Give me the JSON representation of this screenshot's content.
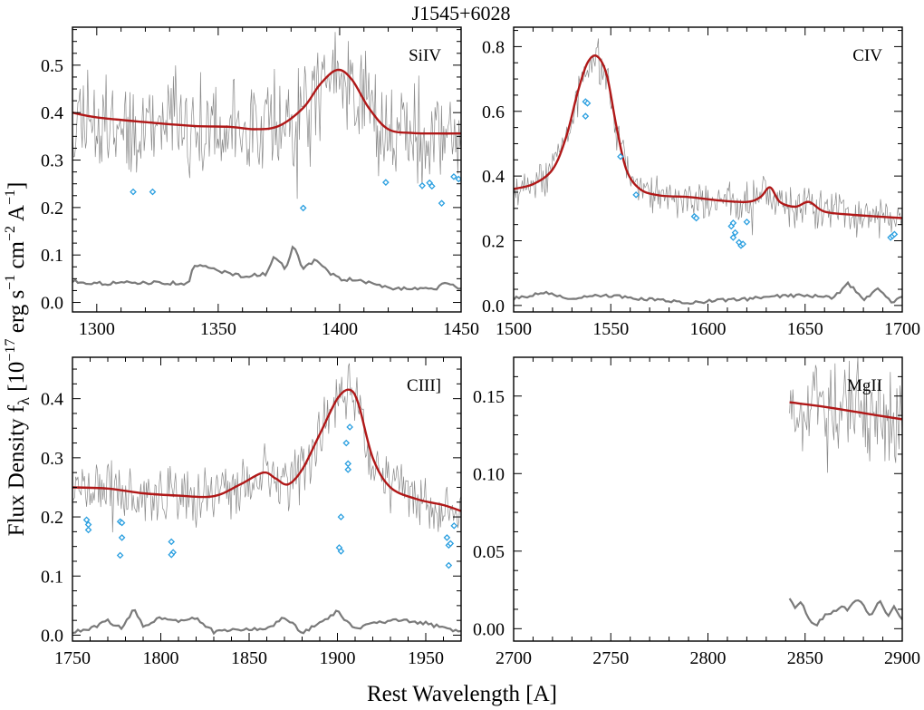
{
  "figure": {
    "title": "J1545+6028",
    "xlabel": "Rest Wavelength [A]",
    "ylabel_main": "Flux Density f",
    "ylabel_sub": "λ",
    "ylabel_units_prefix": " [10",
    "ylabel_exp1": "−17",
    "ylabel_mid1": " erg s",
    "ylabel_exp2": "−1",
    "ylabel_mid2": " cm",
    "ylabel_exp3": "−2",
    "ylabel_mid3": " A",
    "ylabel_exp4": "−1",
    "ylabel_end": "]"
  },
  "colors": {
    "model": "#b01818",
    "spectrum": "#8a8a8a",
    "error": "#7a7a7a",
    "absorption": "#2a9fe0",
    "axes": "#000000"
  },
  "chart_data": [
    {
      "type": "line",
      "panel": "SiIV",
      "label": "SiIV",
      "xlim": [
        1290,
        1450
      ],
      "ylim": [
        -0.02,
        0.58
      ],
      "xticks": [
        1300,
        1350,
        1400,
        1450
      ],
      "yticks": [
        0.0,
        0.1,
        0.2,
        0.3,
        0.4,
        0.5
      ],
      "ytick_labels": [
        "0.0",
        "0.1",
        "0.2",
        "0.3",
        "0.4",
        "0.5"
      ],
      "model": {
        "x": [
          1290,
          1300,
          1320,
          1340,
          1355,
          1365,
          1375,
          1385,
          1392,
          1399,
          1405,
          1412,
          1420,
          1430,
          1440,
          1450
        ],
        "y": [
          0.4,
          0.39,
          0.38,
          0.372,
          0.37,
          0.365,
          0.372,
          0.41,
          0.46,
          0.49,
          0.47,
          0.41,
          0.365,
          0.357,
          0.356,
          0.356
        ]
      },
      "spectrum": {
        "continuum": [
          1290,
          1450,
          0.4,
          0.36
        ],
        "noise": 0.09,
        "seed": 11
      },
      "error": {
        "x": [
          1290,
          1300,
          1320,
          1338,
          1340,
          1360,
          1370,
          1373,
          1378,
          1381,
          1385,
          1390,
          1395,
          1400,
          1410,
          1420,
          1430,
          1440,
          1442,
          1450
        ],
        "y": [
          0.045,
          0.04,
          0.042,
          0.04,
          0.08,
          0.055,
          0.06,
          0.1,
          0.07,
          0.12,
          0.07,
          0.09,
          0.065,
          0.05,
          0.045,
          0.03,
          0.03,
          0.03,
          0.04,
          0.03
        ]
      },
      "absorption": {
        "x": [
          1315,
          1323,
          1385,
          1419,
          1434,
          1437,
          1438,
          1442,
          1447,
          1449
        ],
        "y": [
          0.233,
          0.233,
          0.199,
          0.253,
          0.246,
          0.252,
          0.245,
          0.209,
          0.265,
          0.26
        ]
      }
    },
    {
      "type": "line",
      "panel": "CIV",
      "label": "CIV",
      "xlim": [
        1500,
        1700
      ],
      "ylim": [
        -0.02,
        0.86
      ],
      "xticks": [
        1500,
        1550,
        1600,
        1650,
        1700
      ],
      "yticks": [
        0.0,
        0.2,
        0.4,
        0.6,
        0.8
      ],
      "ytick_labels": [
        "0.0",
        "0.2",
        "0.4",
        "0.6",
        "0.8"
      ],
      "model": {
        "x": [
          1500,
          1510,
          1520,
          1527,
          1533,
          1538,
          1543,
          1548,
          1553,
          1558,
          1565,
          1575,
          1590,
          1605,
          1620,
          1627,
          1632,
          1637,
          1645,
          1652,
          1660,
          1675,
          1700
        ],
        "y": [
          0.36,
          0.375,
          0.42,
          0.52,
          0.66,
          0.75,
          0.77,
          0.71,
          0.55,
          0.42,
          0.36,
          0.34,
          0.335,
          0.325,
          0.32,
          0.335,
          0.365,
          0.32,
          0.305,
          0.32,
          0.29,
          0.28,
          0.27
        ]
      },
      "spectrum": {
        "continuum": [
          1500,
          1700,
          0.36,
          0.27
        ],
        "noise": 0.05,
        "seed": 23
      },
      "error": {
        "x": [
          1500,
          1515,
          1530,
          1545,
          1560,
          1575,
          1590,
          1605,
          1620,
          1635,
          1650,
          1665,
          1672,
          1680,
          1688,
          1695,
          1700
        ],
        "y": [
          0.02,
          0.04,
          0.02,
          0.03,
          0.025,
          0.015,
          0.01,
          0.015,
          0.02,
          0.03,
          0.03,
          0.025,
          0.07,
          0.02,
          0.05,
          0.01,
          0.03
        ]
      },
      "absorption": {
        "x": [
          1537,
          1538,
          1537,
          1555,
          1563,
          1593,
          1594,
          1612,
          1613,
          1614,
          1613,
          1616,
          1617,
          1618,
          1620,
          1694,
          1695,
          1696
        ],
        "y": [
          0.63,
          0.625,
          0.585,
          0.46,
          0.342,
          0.275,
          0.27,
          0.245,
          0.255,
          0.225,
          0.21,
          0.195,
          0.185,
          0.19,
          0.258,
          0.21,
          0.215,
          0.22
        ]
      }
    },
    {
      "type": "line",
      "panel": "CIII]",
      "label": "CIII]",
      "xlim": [
        1750,
        1970
      ],
      "ylim": [
        -0.01,
        0.47
      ],
      "xticks": [
        1750,
        1800,
        1850,
        1900,
        1950
      ],
      "yticks": [
        0.0,
        0.1,
        0.2,
        0.3,
        0.4
      ],
      "ytick_labels": [
        "0.0",
        "0.1",
        "0.2",
        "0.3",
        "0.4"
      ],
      "model": {
        "x": [
          1750,
          1770,
          1790,
          1810,
          1830,
          1845,
          1858,
          1865,
          1872,
          1880,
          1890,
          1900,
          1907,
          1912,
          1920,
          1930,
          1945,
          1960,
          1970
        ],
        "y": [
          0.25,
          0.248,
          0.24,
          0.236,
          0.235,
          0.255,
          0.275,
          0.265,
          0.255,
          0.28,
          0.34,
          0.4,
          0.415,
          0.39,
          0.3,
          0.25,
          0.23,
          0.22,
          0.21
        ]
      },
      "spectrum": {
        "continuum": [
          1750,
          1970,
          0.25,
          0.21
        ],
        "noise": 0.04,
        "seed": 37
      },
      "error": {
        "x": [
          1750,
          1760,
          1770,
          1778,
          1785,
          1790,
          1800,
          1810,
          1820,
          1830,
          1845,
          1860,
          1870,
          1880,
          1890,
          1900,
          1910,
          1920,
          1935,
          1950,
          1970
        ],
        "y": [
          0.005,
          0.01,
          0.025,
          0.01,
          0.045,
          0.015,
          0.03,
          0.025,
          0.03,
          0.005,
          0.01,
          0.01,
          0.03,
          0.005,
          0.02,
          0.04,
          0.01,
          0.02,
          0.025,
          0.02,
          0.005
        ]
      },
      "absorption": {
        "x": [
          1758,
          1759,
          1759,
          1777,
          1778,
          1778,
          1777,
          1806,
          1807,
          1806,
          1901,
          1902,
          1902,
          1905,
          1906,
          1906,
          1907,
          1962,
          1963,
          1964,
          1963,
          1966
        ],
        "y": [
          0.195,
          0.187,
          0.178,
          0.192,
          0.19,
          0.165,
          0.135,
          0.158,
          0.14,
          0.136,
          0.148,
          0.142,
          0.2,
          0.325,
          0.29,
          0.28,
          0.352,
          0.165,
          0.152,
          0.155,
          0.118,
          0.185
        ]
      }
    },
    {
      "type": "line",
      "panel": "MgII",
      "label": "MgII",
      "xlim": [
        2700,
        2900
      ],
      "ylim": [
        -0.008,
        0.175
      ],
      "xticks": [
        2700,
        2750,
        2800,
        2850,
        2900
      ],
      "yticks": [
        0.0,
        0.05,
        0.1,
        0.15
      ],
      "ytick_labels": [
        "0.00",
        "0.05",
        "0.10",
        "0.15"
      ],
      "model": {
        "x": [
          2842,
          2860,
          2880,
          2900
        ],
        "y": [
          0.146,
          0.143,
          0.139,
          0.135
        ]
      },
      "spectrum": {
        "continuum": [
          2842,
          2900,
          0.14,
          0.135
        ],
        "noise": 0.025,
        "seed": 53
      },
      "error": {
        "x": [
          2842,
          2845,
          2848,
          2852,
          2856,
          2860,
          2864,
          2868,
          2872,
          2876,
          2880,
          2884,
          2888,
          2892,
          2896,
          2900
        ],
        "y": [
          0.02,
          0.012,
          0.018,
          0.006,
          0.003,
          0.008,
          0.01,
          0.014,
          0.012,
          0.019,
          0.015,
          0.008,
          0.019,
          0.008,
          0.014,
          0.006
        ]
      },
      "absorption": {
        "x": [],
        "y": []
      }
    }
  ]
}
